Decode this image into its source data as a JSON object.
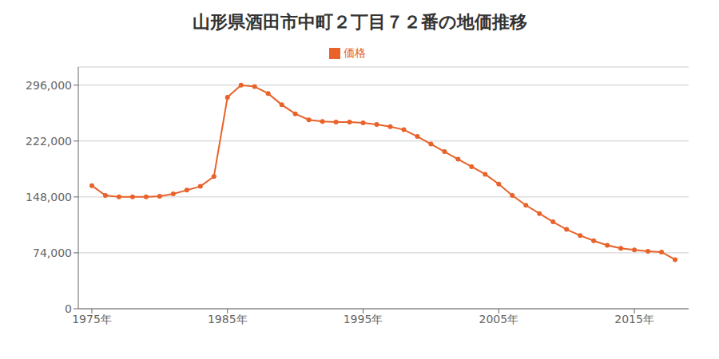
{
  "chart_data": {
    "type": "line",
    "title": "山形県酒田市中町２丁目７２番の地価推移",
    "x": [
      1975,
      1976,
      1977,
      1978,
      1979,
      1980,
      1981,
      1982,
      1983,
      1984,
      1985,
      1986,
      1987,
      1988,
      1989,
      1990,
      1991,
      1992,
      1993,
      1994,
      1995,
      1996,
      1997,
      1998,
      1999,
      2000,
      2001,
      2002,
      2003,
      2004,
      2005,
      2006,
      2007,
      2008,
      2009,
      2010,
      2011,
      2012,
      2013,
      2014,
      2015,
      2016,
      2017,
      2018
    ],
    "series": [
      {
        "name": "価格",
        "color": "#E8622A",
        "marker": "circle",
        "values": [
          163000,
          150000,
          148000,
          148000,
          148000,
          149000,
          152000,
          157000,
          162000,
          175000,
          280000,
          296000,
          294000,
          285000,
          270000,
          258000,
          250000,
          248000,
          247000,
          247000,
          246000,
          244000,
          241000,
          237000,
          228000,
          218000,
          208000,
          198000,
          188000,
          178000,
          165000,
          150000,
          137000,
          126000,
          115000,
          105000,
          97000,
          90000,
          84000,
          80000,
          78000,
          76000,
          75000,
          65000
        ]
      }
    ],
    "xlim": [
      1974,
      2019
    ],
    "xticks": [
      {
        "value": 1975,
        "label": "1975年"
      },
      {
        "value": 1985,
        "label": "1985年"
      },
      {
        "value": 1995,
        "label": "1995年"
      },
      {
        "value": 2005,
        "label": "2005年"
      },
      {
        "value": 2015,
        "label": "2015年"
      }
    ],
    "ylim": [
      0,
      320000
    ],
    "yticks": [
      0,
      {
        "value": 74000,
        "label": "74,000"
      },
      {
        "value": 148000,
        "label": "148,000"
      },
      {
        "value": 222000,
        "label": "222,000"
      },
      {
        "value": 296000,
        "label": "296,000"
      }
    ],
    "grid": true,
    "legend": "top"
  }
}
